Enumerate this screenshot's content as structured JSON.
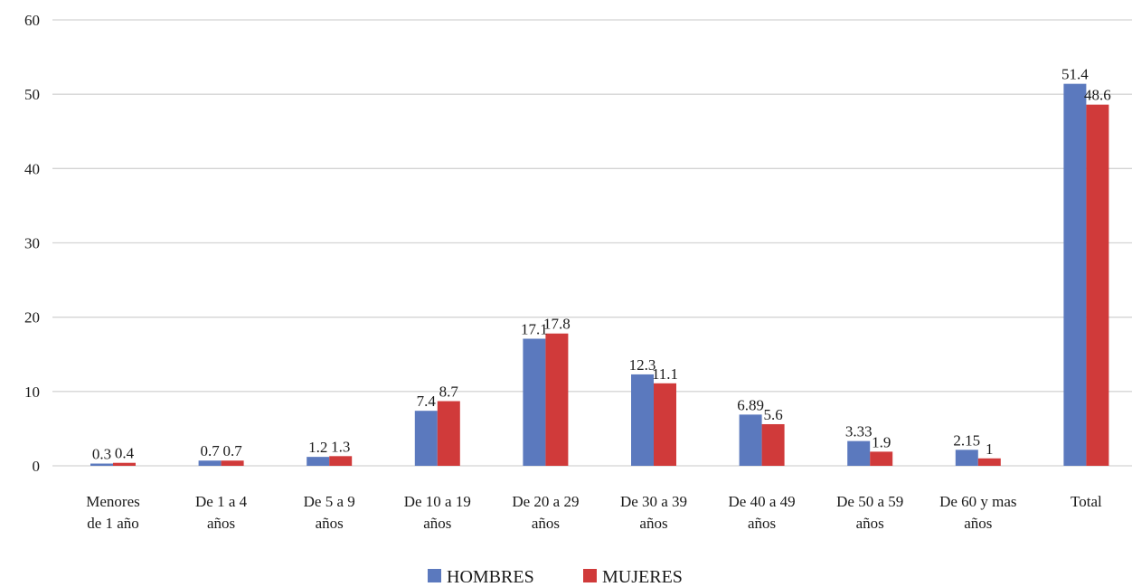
{
  "chart_data": {
    "type": "bar",
    "title": "",
    "xlabel": "",
    "ylabel": "",
    "ylim": [
      0,
      60
    ],
    "yticks": [
      0,
      10,
      20,
      30,
      40,
      50,
      60
    ],
    "grid": true,
    "legend_position": "bottom",
    "categories": [
      [
        "Menores",
        "de 1 año"
      ],
      [
        "De 1 a 4",
        "años"
      ],
      [
        "De 5 a 9",
        "años"
      ],
      [
        "De 10 a 19",
        "años"
      ],
      [
        "De 20 a 29",
        "años"
      ],
      [
        "De 30 a 39",
        "años"
      ],
      [
        "De 40 a 49",
        "años"
      ],
      [
        "De 50 a 59",
        "años"
      ],
      [
        "De 60 y mas",
        "años"
      ],
      [
        "Total"
      ]
    ],
    "series": [
      {
        "name": "HOMBRES",
        "color": "#5b79be",
        "values": [
          0.3,
          0.7,
          1.2,
          7.4,
          17.1,
          12.3,
          6.89,
          3.33,
          2.15,
          51.4
        ],
        "labels": [
          "0.3",
          "0.7",
          "1.2",
          "7.4",
          "17.1",
          "12.3",
          "6.89",
          "3.33",
          "2.15",
          "51.4"
        ]
      },
      {
        "name": "MUJERES",
        "color": "#d03a3a",
        "values": [
          0.4,
          0.7,
          1.3,
          8.7,
          17.8,
          11.1,
          5.6,
          1.9,
          1,
          48.6
        ],
        "labels": [
          "0.4",
          "0.7",
          "1.3",
          "8.7",
          "17.8",
          "11.1",
          "5.6",
          "1.9",
          "1",
          "48.6"
        ]
      }
    ]
  }
}
